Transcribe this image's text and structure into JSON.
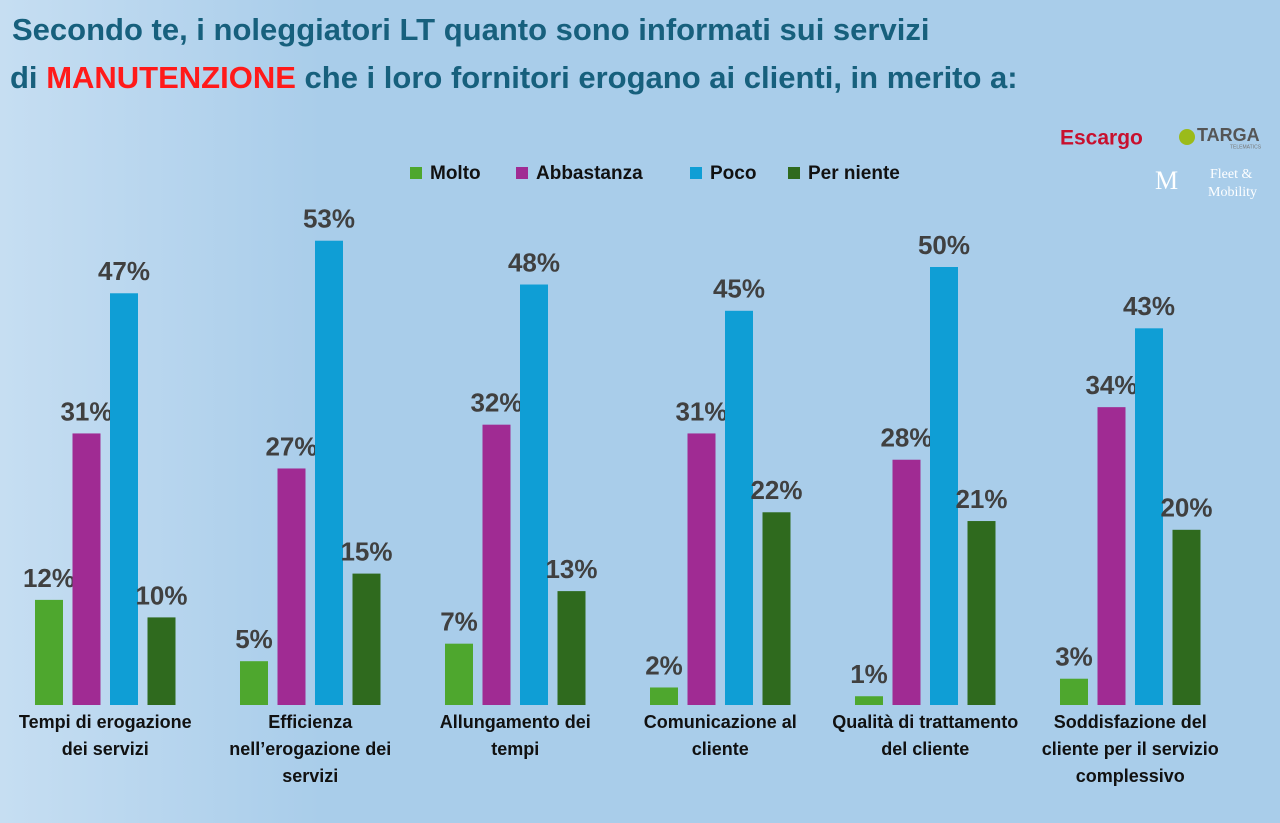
{
  "chart_data": {
    "type": "bar",
    "title": [
      "Secondo te, i noleggiatori LT quanto sono informati sui servizi",
      "di",
      "MANUTENZIONE",
      "che i loro fornitori erogano ai clienti, in merito a:"
    ],
    "logos": [
      "Escargo",
      "TARGA",
      "TELEMATICS",
      "Fleet &",
      "Mobility"
    ],
    "categories": [
      "Tempi di erogazione dei servizi",
      "Efficienza nell’erogazione dei servizi",
      "Allungamento dei tempi",
      "Comunicazione al cliente",
      "Qualità di trattamento del cliente",
      "Soddisfazione del cliente per il servizio complessivo"
    ],
    "series": [
      {
        "name": "Molto",
        "color": "#4ea72e",
        "values": [
          12,
          5,
          7,
          2,
          1,
          3
        ],
        "value_labels": [
          "12%",
          "5%",
          "7%",
          "2%",
          "1%",
          "3%"
        ]
      },
      {
        "name": "Abbastanza",
        "color": "#a02b93",
        "values": [
          31,
          27,
          32,
          31,
          28,
          34
        ],
        "value_labels": [
          "31%",
          "27%",
          "32%",
          "31%",
          "28%",
          "34%"
        ]
      },
      {
        "name": "Poco",
        "color": "#0f9ed5",
        "values": [
          47,
          53,
          48,
          45,
          50,
          43
        ],
        "value_labels": [
          "47%",
          "53%",
          "48%",
          "45%",
          "50%",
          "43%"
        ]
      },
      {
        "name": "Per niente",
        "color": "#2f6a1e",
        "values": [
          10,
          15,
          13,
          22,
          21,
          20
        ],
        "value_labels": [
          "10%",
          "15%",
          "13%",
          "22%",
          "21%",
          "20%"
        ]
      }
    ],
    "legend": "top"
  }
}
